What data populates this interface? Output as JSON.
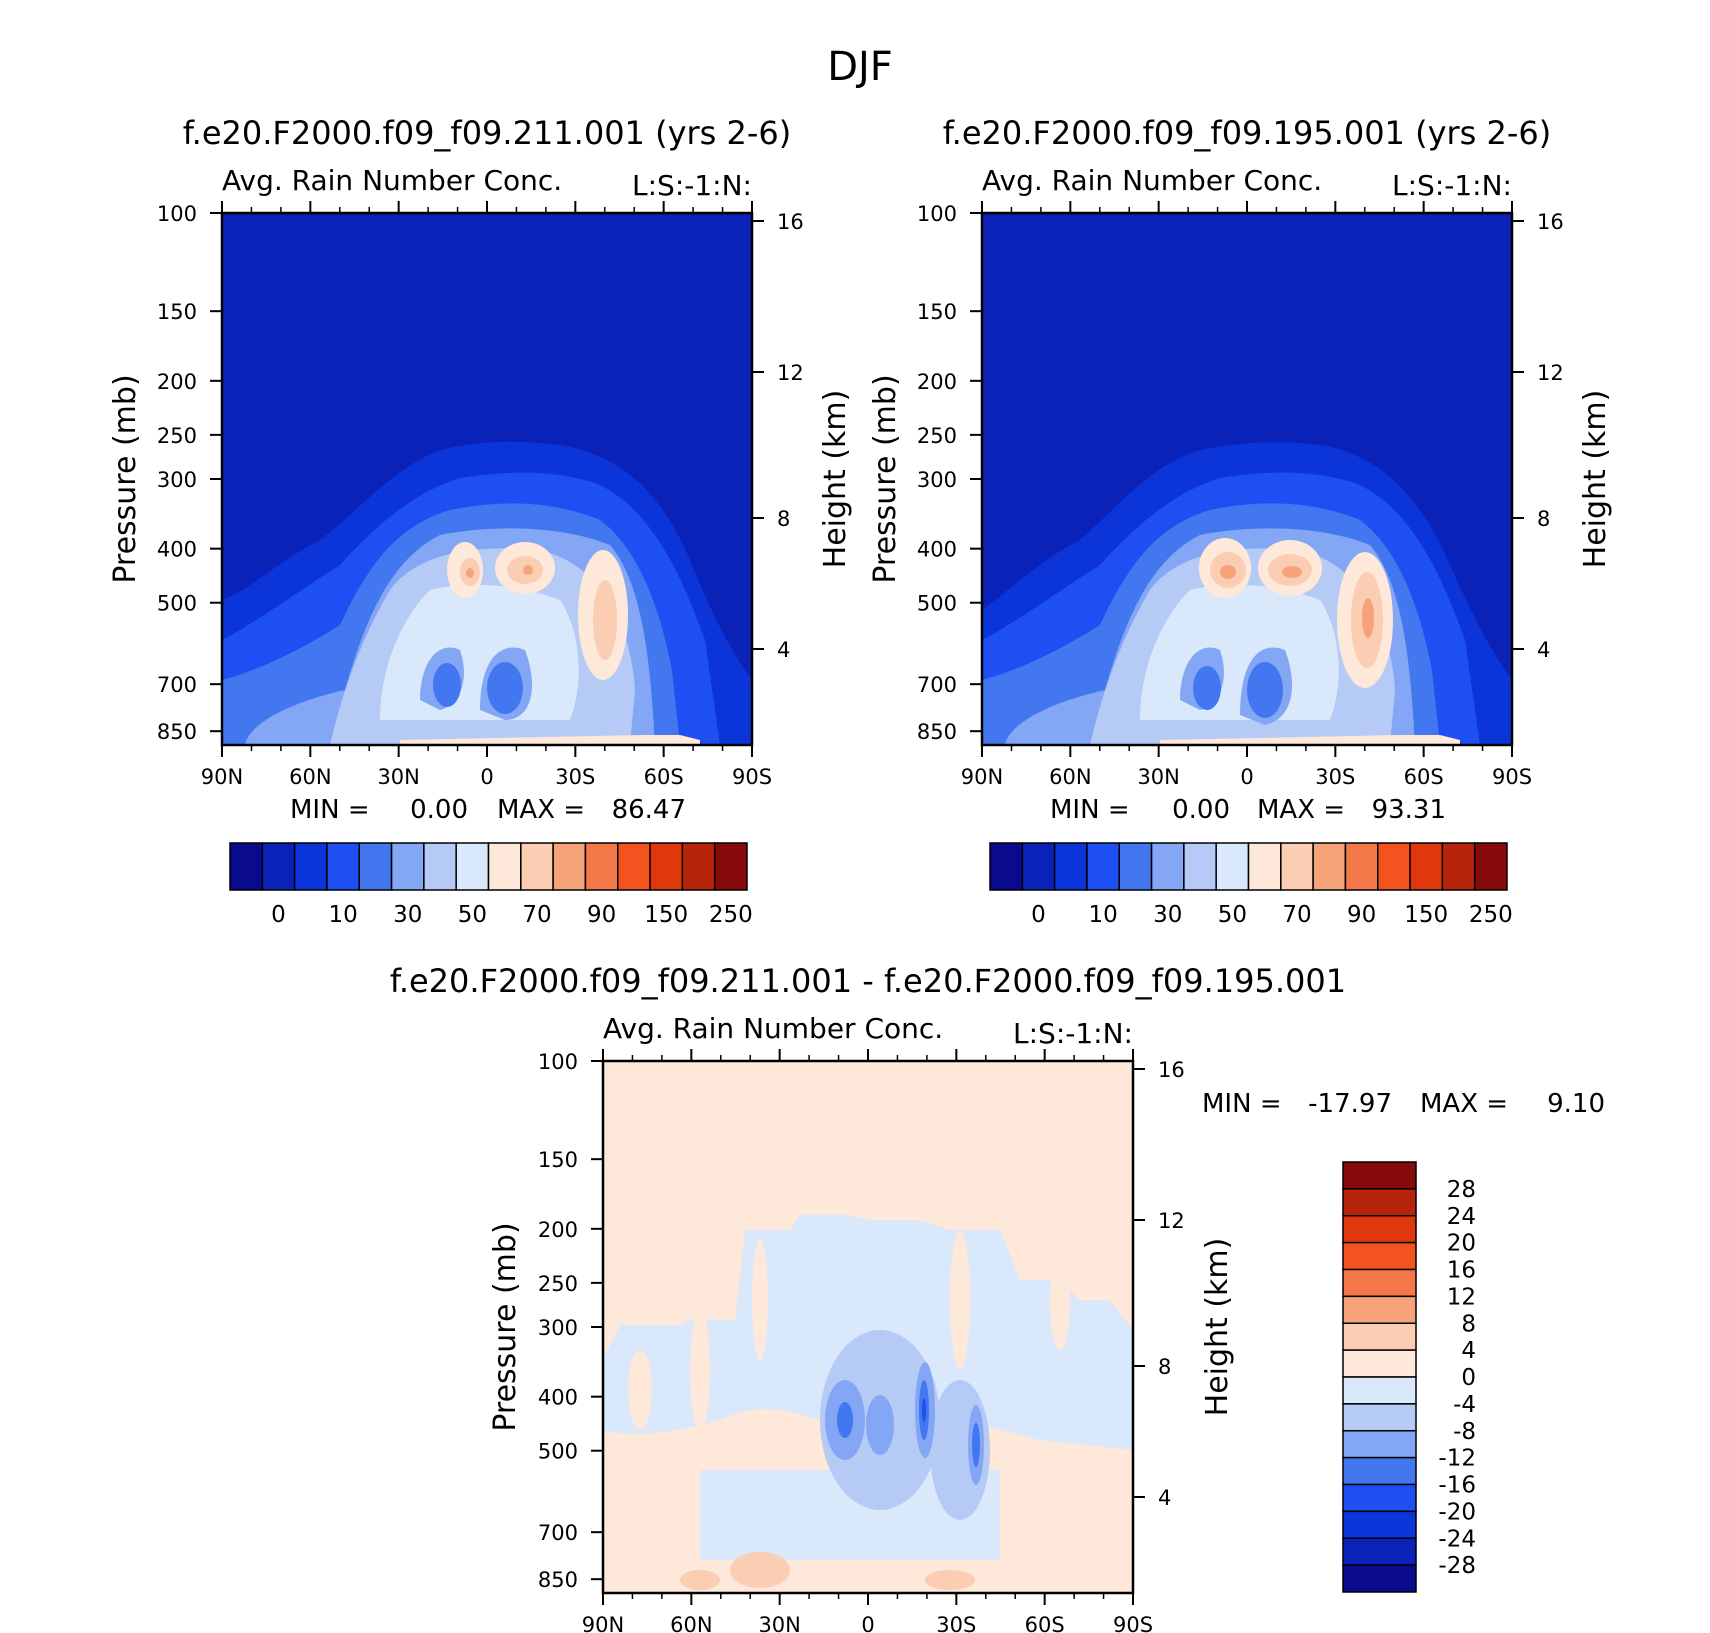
{
  "figure": {
    "title": "DJF"
  },
  "colors": {
    "rain_palette": [
      "#0a0a8c",
      "#0b22b8",
      "#0b35d9",
      "#1e4ff2",
      "#4277f0",
      "#84a7f5",
      "#b5cbf6",
      "#d9e8fb",
      "#fde8da",
      "#fbcdb2",
      "#f7a37a",
      "#f5784b",
      "#f2531f",
      "#e0380c",
      "#b6250a",
      "#860a0a"
    ],
    "diff_palette": [
      "#0a0a8c",
      "#0b22b8",
      "#0b35d9",
      "#1e4ff2",
      "#4277f0",
      "#84a7f5",
      "#b5cbf6",
      "#d9e8fb",
      "#fde8da",
      "#fbcdb2",
      "#f7a37a",
      "#f5784b",
      "#f2531f",
      "#e0380c",
      "#b6250a",
      "#860a0a"
    ]
  },
  "chart_data": [
    {
      "type": "heatmap",
      "title": "f.e20.F2000.f09_f09.211.001 (yrs 2-6)",
      "subtitle": "Avg. Rain Number Conc.",
      "corner_label": "L:S:-1:N:",
      "ylabel": "Pressure (mb)",
      "ylabel_right": "Height (km)",
      "x_ticks": [
        "90N",
        "60N",
        "30N",
        "0",
        "30S",
        "60S",
        "90S"
      ],
      "y_ticks": [
        "100",
        "150",
        "200",
        "250",
        "300",
        "400",
        "500",
        "700",
        "850"
      ],
      "y_right_ticks": [
        "16",
        "12",
        "8",
        "4"
      ],
      "min_label": "MIN =",
      "min_value": "0.00",
      "max_label": "MAX =",
      "max_value": "86.47",
      "colorbar_labels": [
        "0",
        "10",
        "30",
        "50",
        "70",
        "90",
        "150",
        "250"
      ]
    },
    {
      "type": "heatmap",
      "title": "f.e20.F2000.f09_f09.195.001 (yrs 2-6)",
      "subtitle": "Avg. Rain Number Conc.",
      "corner_label": "L:S:-1:N:",
      "ylabel": "Pressure (mb)",
      "ylabel_right": "Height (km)",
      "x_ticks": [
        "90N",
        "60N",
        "30N",
        "0",
        "30S",
        "60S",
        "90S"
      ],
      "y_ticks": [
        "100",
        "150",
        "200",
        "250",
        "300",
        "400",
        "500",
        "700",
        "850"
      ],
      "y_right_ticks": [
        "16",
        "12",
        "8",
        "4"
      ],
      "min_label": "MIN =",
      "min_value": "0.00",
      "max_label": "MAX =",
      "max_value": "93.31",
      "colorbar_labels": [
        "0",
        "10",
        "30",
        "50",
        "70",
        "90",
        "150",
        "250"
      ]
    },
    {
      "type": "heatmap",
      "title": "f.e20.F2000.f09_f09.211.001 - f.e20.F2000.f09_f09.195.001",
      "subtitle": "Avg. Rain Number Conc.",
      "corner_label": "L:S:-1:N:",
      "ylabel": "Pressure (mb)",
      "ylabel_right": "Height (km)",
      "x_ticks": [
        "90N",
        "60N",
        "30N",
        "0",
        "30S",
        "60S",
        "90S"
      ],
      "y_ticks": [
        "100",
        "150",
        "200",
        "250",
        "300",
        "400",
        "500",
        "700",
        "850"
      ],
      "y_right_ticks": [
        "16",
        "12",
        "8",
        "4"
      ],
      "min_label": "MIN =",
      "min_value": "-17.97",
      "max_label": "MAX =",
      "max_value": "9.10",
      "colorbar_labels": [
        "28",
        "24",
        "20",
        "16",
        "12",
        "8",
        "4",
        "0",
        "-4",
        "-8",
        "-12",
        "-16",
        "-20",
        "-24",
        "-28"
      ]
    }
  ]
}
